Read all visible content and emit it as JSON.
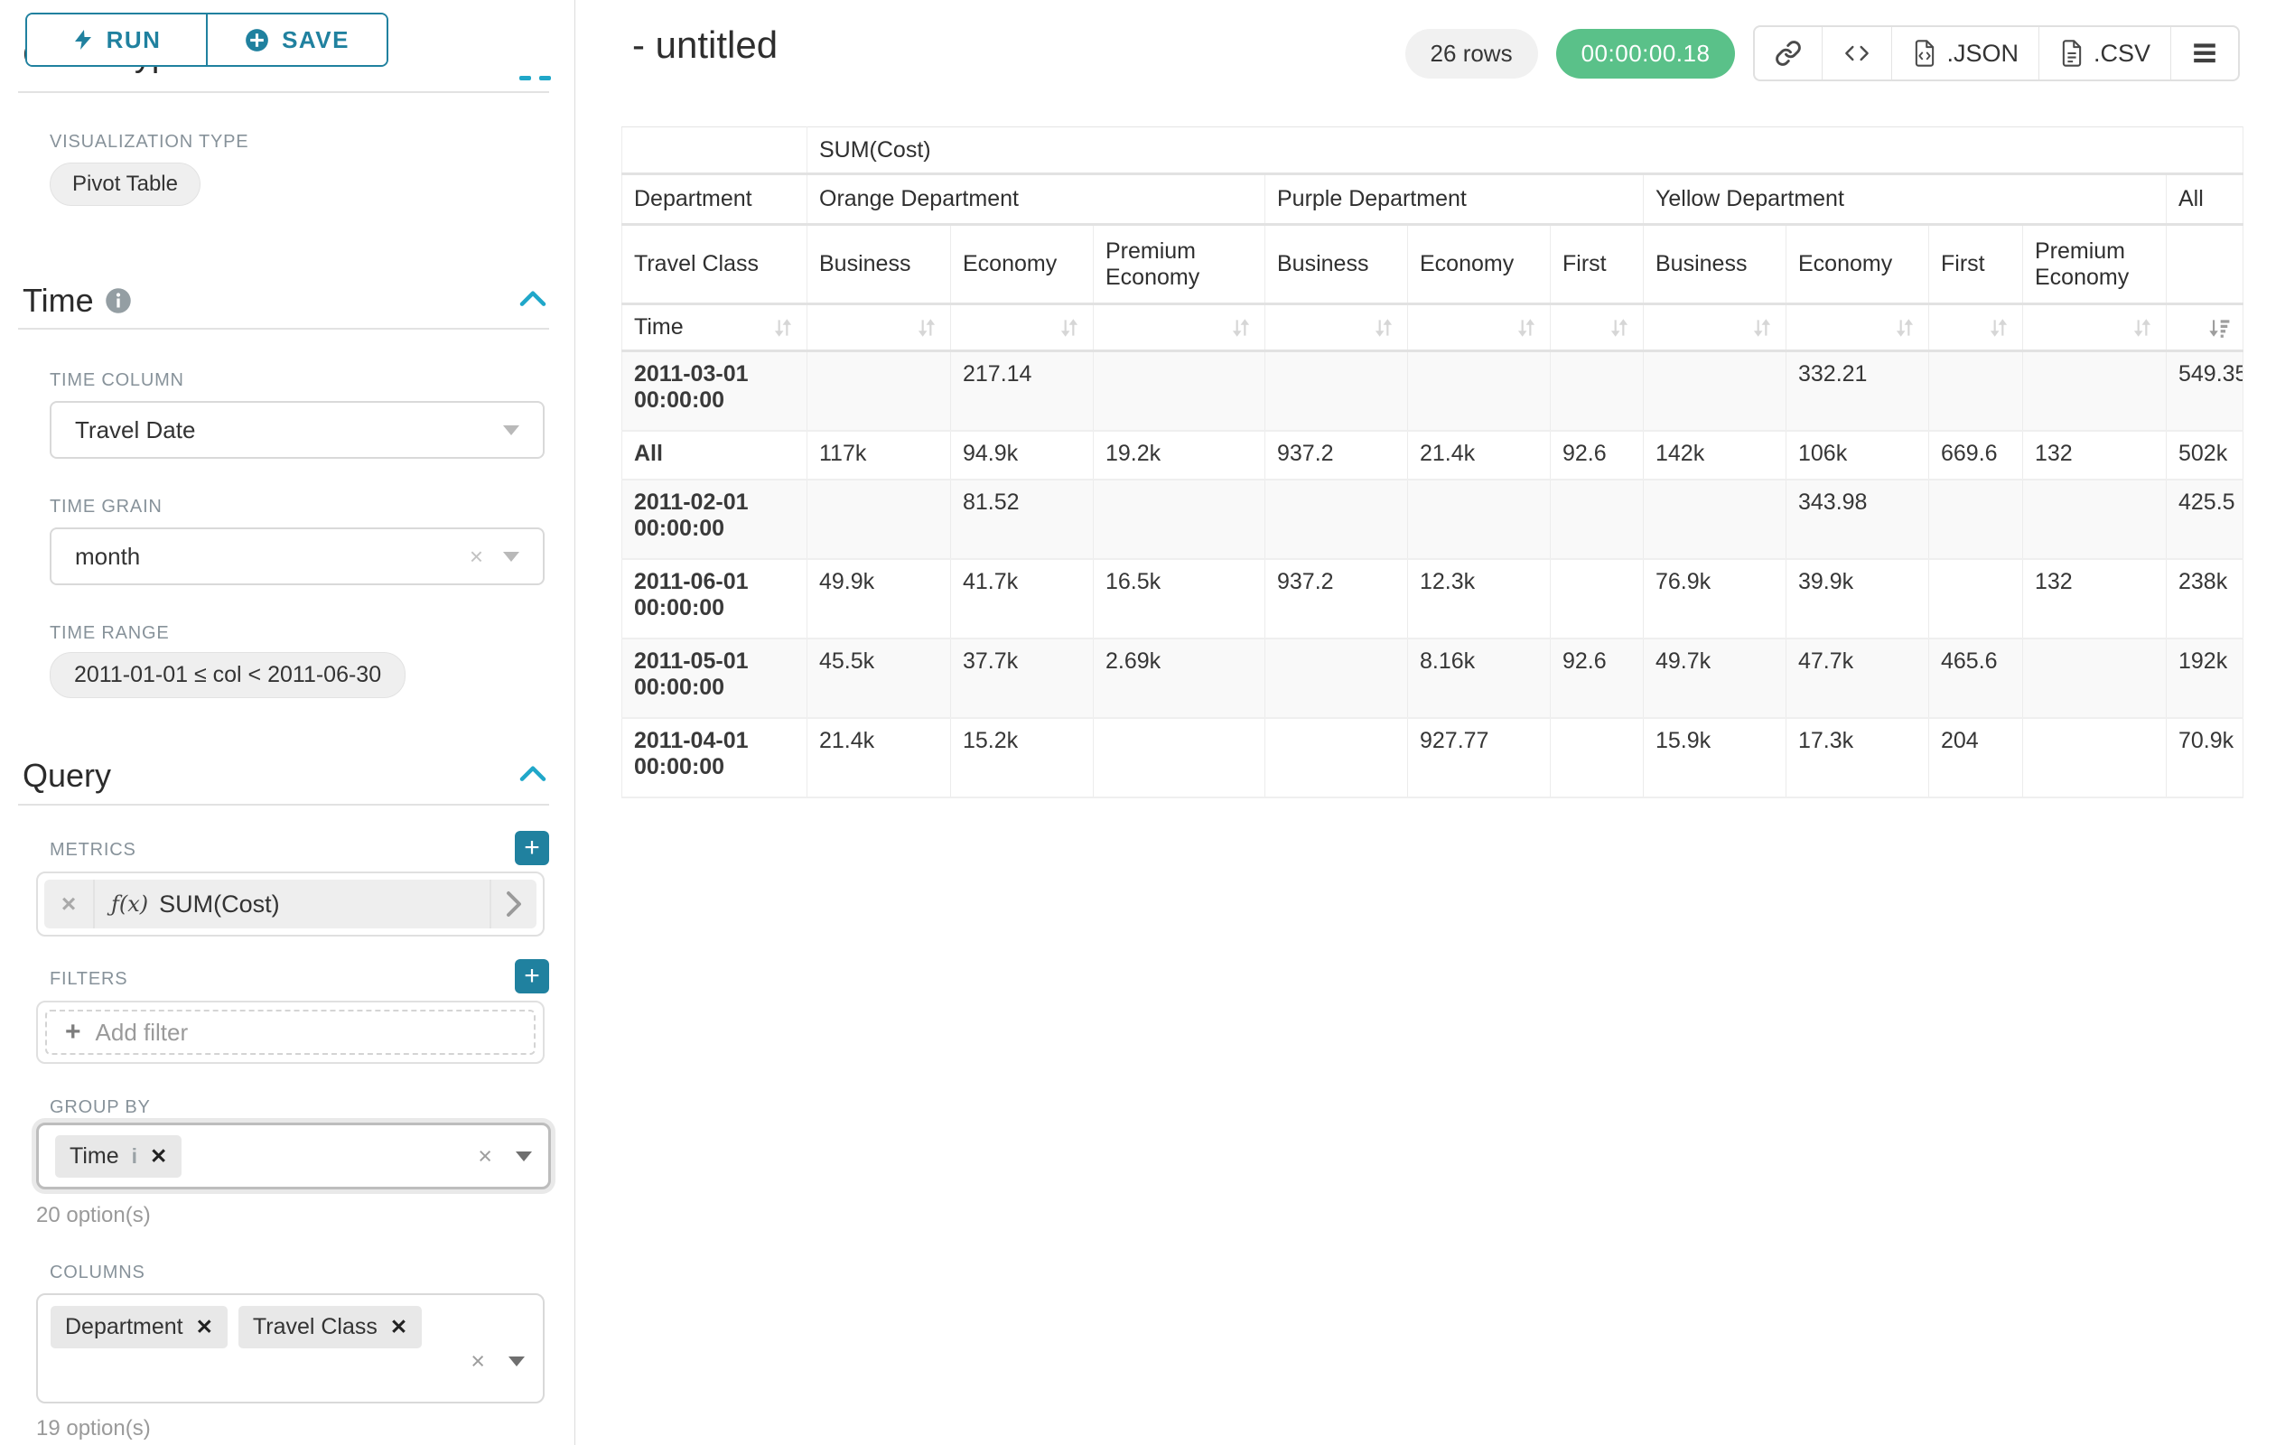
{
  "colors": {
    "accent_teal": "#20a7c9",
    "button_teal": "#20819f",
    "timer_green": "#5ac189",
    "label_gray": "#87929a"
  },
  "sidebar": {
    "run_button": "RUN",
    "save_button": "SAVE",
    "panel_heading": "Chart Type",
    "visualization": {
      "label": "VISUALIZATION TYPE",
      "value": "Pivot Table"
    },
    "time": {
      "title": "Time",
      "time_column_label": "TIME COLUMN",
      "time_column_value": "Travel Date",
      "time_grain_label": "TIME GRAIN",
      "time_grain_value": "month",
      "time_range_label": "TIME RANGE",
      "time_range_value": "2011-01-01 ≤ col < 2011-06-30"
    },
    "query": {
      "title": "Query",
      "metrics_label": "METRICS",
      "metric_fx": "ƒ(x)",
      "metric_value": "SUM(Cost)",
      "filters_label": "FILTERS",
      "add_filter_label": "Add filter",
      "group_by_label": "GROUP BY",
      "group_by_tag": "Time",
      "group_by_options": "20 option(s)",
      "columns_label": "COLUMNS",
      "columns_tags": [
        "Department",
        "Travel Class"
      ],
      "columns_options": "19 option(s)"
    }
  },
  "header": {
    "title": "- untitled",
    "row_count": "26 rows",
    "timer": "00:00:00.18",
    "json_label": ".JSON",
    "csv_label": ".CSV"
  },
  "chart_data": {
    "type": "table",
    "metric": "SUM(Cost)",
    "row_dimension": "Time",
    "column_dimensions": [
      "Department",
      "Travel Class"
    ],
    "corner": {
      "department": "Department",
      "travel_class": "Travel Class",
      "time": "Time"
    },
    "groups": [
      {
        "label": "Orange Department",
        "span": 3
      },
      {
        "label": "Purple Department",
        "span": 3
      },
      {
        "label": "Yellow Department",
        "span": 4
      },
      {
        "label": "All",
        "span": 1
      }
    ],
    "subheaders": [
      "Business",
      "Economy",
      "Premium Economy",
      "Business",
      "Economy",
      "First",
      "Business",
      "Economy",
      "First",
      "Premium Economy",
      ""
    ],
    "rows": [
      {
        "label": "2011-03-01 00:00:00",
        "values": [
          "",
          "217.14",
          "",
          "",
          "",
          "",
          "",
          "332.21",
          "",
          "",
          "549.35"
        ]
      },
      {
        "label": "All",
        "values": [
          "117k",
          "94.9k",
          "19.2k",
          "937.2",
          "21.4k",
          "92.6",
          "142k",
          "106k",
          "669.6",
          "132",
          "502k"
        ]
      },
      {
        "label": "2011-02-01 00:00:00",
        "values": [
          "",
          "81.52",
          "",
          "",
          "",
          "",
          "",
          "343.98",
          "",
          "",
          "425.5"
        ]
      },
      {
        "label": "2011-06-01 00:00:00",
        "values": [
          "49.9k",
          "41.7k",
          "16.5k",
          "937.2",
          "12.3k",
          "",
          "76.9k",
          "39.9k",
          "",
          "132",
          "238k"
        ]
      },
      {
        "label": "2011-05-01 00:00:00",
        "values": [
          "45.5k",
          "37.7k",
          "2.69k",
          "",
          "8.16k",
          "92.6",
          "49.7k",
          "47.7k",
          "465.6",
          "",
          "192k"
        ]
      },
      {
        "label": "2011-04-01 00:00:00",
        "values": [
          "21.4k",
          "15.2k",
          "",
          "",
          "927.77",
          "",
          "15.9k",
          "17.3k",
          "204",
          "",
          "70.9k"
        ]
      }
    ],
    "sorted_column": "All",
    "sort_direction": "desc"
  }
}
